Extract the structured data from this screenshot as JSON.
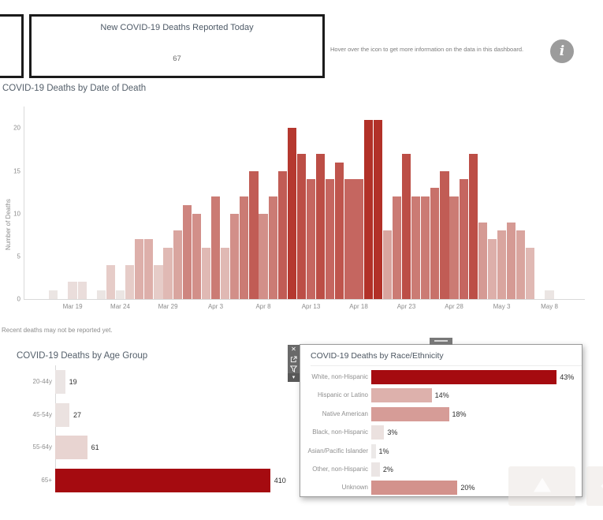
{
  "kpi": {
    "title": "New COVID-19 Deaths Reported Today",
    "value": "67"
  },
  "info_banner": {
    "text": "Hover over the icon to get more information on the data in this dashboard.",
    "icon": "info-icon"
  },
  "note": "Recent deaths may not be reported yet.",
  "floating_panel": {
    "toolbar_icons": [
      "close-icon",
      "open-in-new-icon",
      "filter-icon",
      "dropdown-caret-icon"
    ],
    "close_glyph": "✕",
    "caret_glyph": "▾"
  },
  "colors": {
    "deep_red": "#a50b10",
    "main_chart_max_red": "#b23128",
    "ramp_light": "#ededec",
    "box_border": "#1b1b1b",
    "toolbar_bg": "#696969",
    "info_icon_bg": "#9c9c9c",
    "axis_text": "#8c8c8c",
    "title_text": "#55606b"
  },
  "chart_data": [
    {
      "type": "bar",
      "title": "COVID-19 Deaths by Date of Death",
      "ylabel": "Number of Deaths",
      "ylim": [
        0,
        22.5
      ],
      "yticks": [
        0,
        5,
        10,
        15,
        20
      ],
      "grid": false,
      "x_axis_start": "Mar 15",
      "xticks": [
        {
          "label": "Mar 19",
          "day": 4
        },
        {
          "label": "Mar 24",
          "day": 9
        },
        {
          "label": "Mar 29",
          "day": 14
        },
        {
          "label": "Apr 3",
          "day": 19
        },
        {
          "label": "Apr 8",
          "day": 24
        },
        {
          "label": "Apr 13",
          "day": 29
        },
        {
          "label": "Apr 18",
          "day": 34
        },
        {
          "label": "Apr 23",
          "day": 39
        },
        {
          "label": "Apr 28",
          "day": 44
        },
        {
          "label": "May 3",
          "day": 49
        },
        {
          "label": "May 8",
          "day": 54
        }
      ],
      "bars": [
        {
          "date": "Mar 17",
          "day": 2,
          "value": 1
        },
        {
          "date": "Mar 19",
          "day": 4,
          "value": 2
        },
        {
          "date": "Mar 20",
          "day": 5,
          "value": 2
        },
        {
          "date": "Mar 22",
          "day": 7,
          "value": 1
        },
        {
          "date": "Mar 23",
          "day": 8,
          "value": 4
        },
        {
          "date": "Mar 24",
          "day": 9,
          "value": 1
        },
        {
          "date": "Mar 25",
          "day": 10,
          "value": 4
        },
        {
          "date": "Mar 26",
          "day": 11,
          "value": 7
        },
        {
          "date": "Mar 27",
          "day": 12,
          "value": 7
        },
        {
          "date": "Mar 28",
          "day": 13,
          "value": 4
        },
        {
          "date": "Mar 29",
          "day": 14,
          "value": 6
        },
        {
          "date": "Mar 30",
          "day": 15,
          "value": 8
        },
        {
          "date": "Mar 31",
          "day": 16,
          "value": 11
        },
        {
          "date": "Apr 1",
          "day": 17,
          "value": 10
        },
        {
          "date": "Apr 2",
          "day": 18,
          "value": 6
        },
        {
          "date": "Apr 3",
          "day": 19,
          "value": 12
        },
        {
          "date": "Apr 4",
          "day": 20,
          "value": 6
        },
        {
          "date": "Apr 5",
          "day": 21,
          "value": 10
        },
        {
          "date": "Apr 6",
          "day": 22,
          "value": 12
        },
        {
          "date": "Apr 7",
          "day": 23,
          "value": 15
        },
        {
          "date": "Apr 8",
          "day": 24,
          "value": 10
        },
        {
          "date": "Apr 9",
          "day": 25,
          "value": 12
        },
        {
          "date": "Apr 10",
          "day": 26,
          "value": 15
        },
        {
          "date": "Apr 11",
          "day": 27,
          "value": 20
        },
        {
          "date": "Apr 12",
          "day": 28,
          "value": 17
        },
        {
          "date": "Apr 13",
          "day": 29,
          "value": 14
        },
        {
          "date": "Apr 14",
          "day": 30,
          "value": 17
        },
        {
          "date": "Apr 15",
          "day": 31,
          "value": 14
        },
        {
          "date": "Apr 16",
          "day": 32,
          "value": 16
        },
        {
          "date": "Apr 17",
          "day": 33,
          "value": 14
        },
        {
          "date": "Apr 18",
          "day": 34,
          "value": 14
        },
        {
          "date": "Apr 19",
          "day": 35,
          "value": 21
        },
        {
          "date": "Apr 20",
          "day": 36,
          "value": 21
        },
        {
          "date": "Apr 21",
          "day": 37,
          "value": 8
        },
        {
          "date": "Apr 22",
          "day": 38,
          "value": 12
        },
        {
          "date": "Apr 23",
          "day": 39,
          "value": 17
        },
        {
          "date": "Apr 24",
          "day": 40,
          "value": 12
        },
        {
          "date": "Apr 25",
          "day": 41,
          "value": 12
        },
        {
          "date": "Apr 26",
          "day": 42,
          "value": 13
        },
        {
          "date": "Apr 27",
          "day": 43,
          "value": 15
        },
        {
          "date": "Apr 28",
          "day": 44,
          "value": 12
        },
        {
          "date": "Apr 29",
          "day": 45,
          "value": 14
        },
        {
          "date": "Apr 30",
          "day": 46,
          "value": 17
        },
        {
          "date": "May 1",
          "day": 47,
          "value": 9
        },
        {
          "date": "May 2",
          "day": 48,
          "value": 7
        },
        {
          "date": "May 3",
          "day": 49,
          "value": 8
        },
        {
          "date": "May 4",
          "day": 50,
          "value": 9
        },
        {
          "date": "May 5",
          "day": 51,
          "value": 8
        },
        {
          "date": "May 6",
          "day": 52,
          "value": 6
        },
        {
          "date": "May 8",
          "day": 54,
          "value": 1
        }
      ]
    },
    {
      "type": "bar",
      "orientation": "horizontal",
      "title": "COVID-19 Deaths by Age Group",
      "categories": [
        "20-44y",
        "45-54y",
        "55-64y",
        "65+"
      ],
      "values": [
        19,
        27,
        61,
        410
      ],
      "value_labels": [
        "19",
        "27",
        "61",
        "410"
      ],
      "xlim": [
        0,
        430
      ]
    },
    {
      "type": "bar",
      "orientation": "horizontal",
      "title": "COVID-19 Deaths by Race/Ethnicity",
      "categories": [
        "White, non-Hispanic",
        "Hispanic or Latino",
        "Native American",
        "Black, non-Hispanic",
        "Asian/Pacific Islander",
        "Other, non-Hispanic",
        "Unknown"
      ],
      "values": [
        43,
        14,
        18,
        3,
        1,
        2,
        20
      ],
      "value_labels": [
        "43%",
        "14%",
        "18%",
        "3%",
        "1%",
        "2%",
        "20%"
      ],
      "xlim": [
        0,
        50
      ]
    }
  ]
}
